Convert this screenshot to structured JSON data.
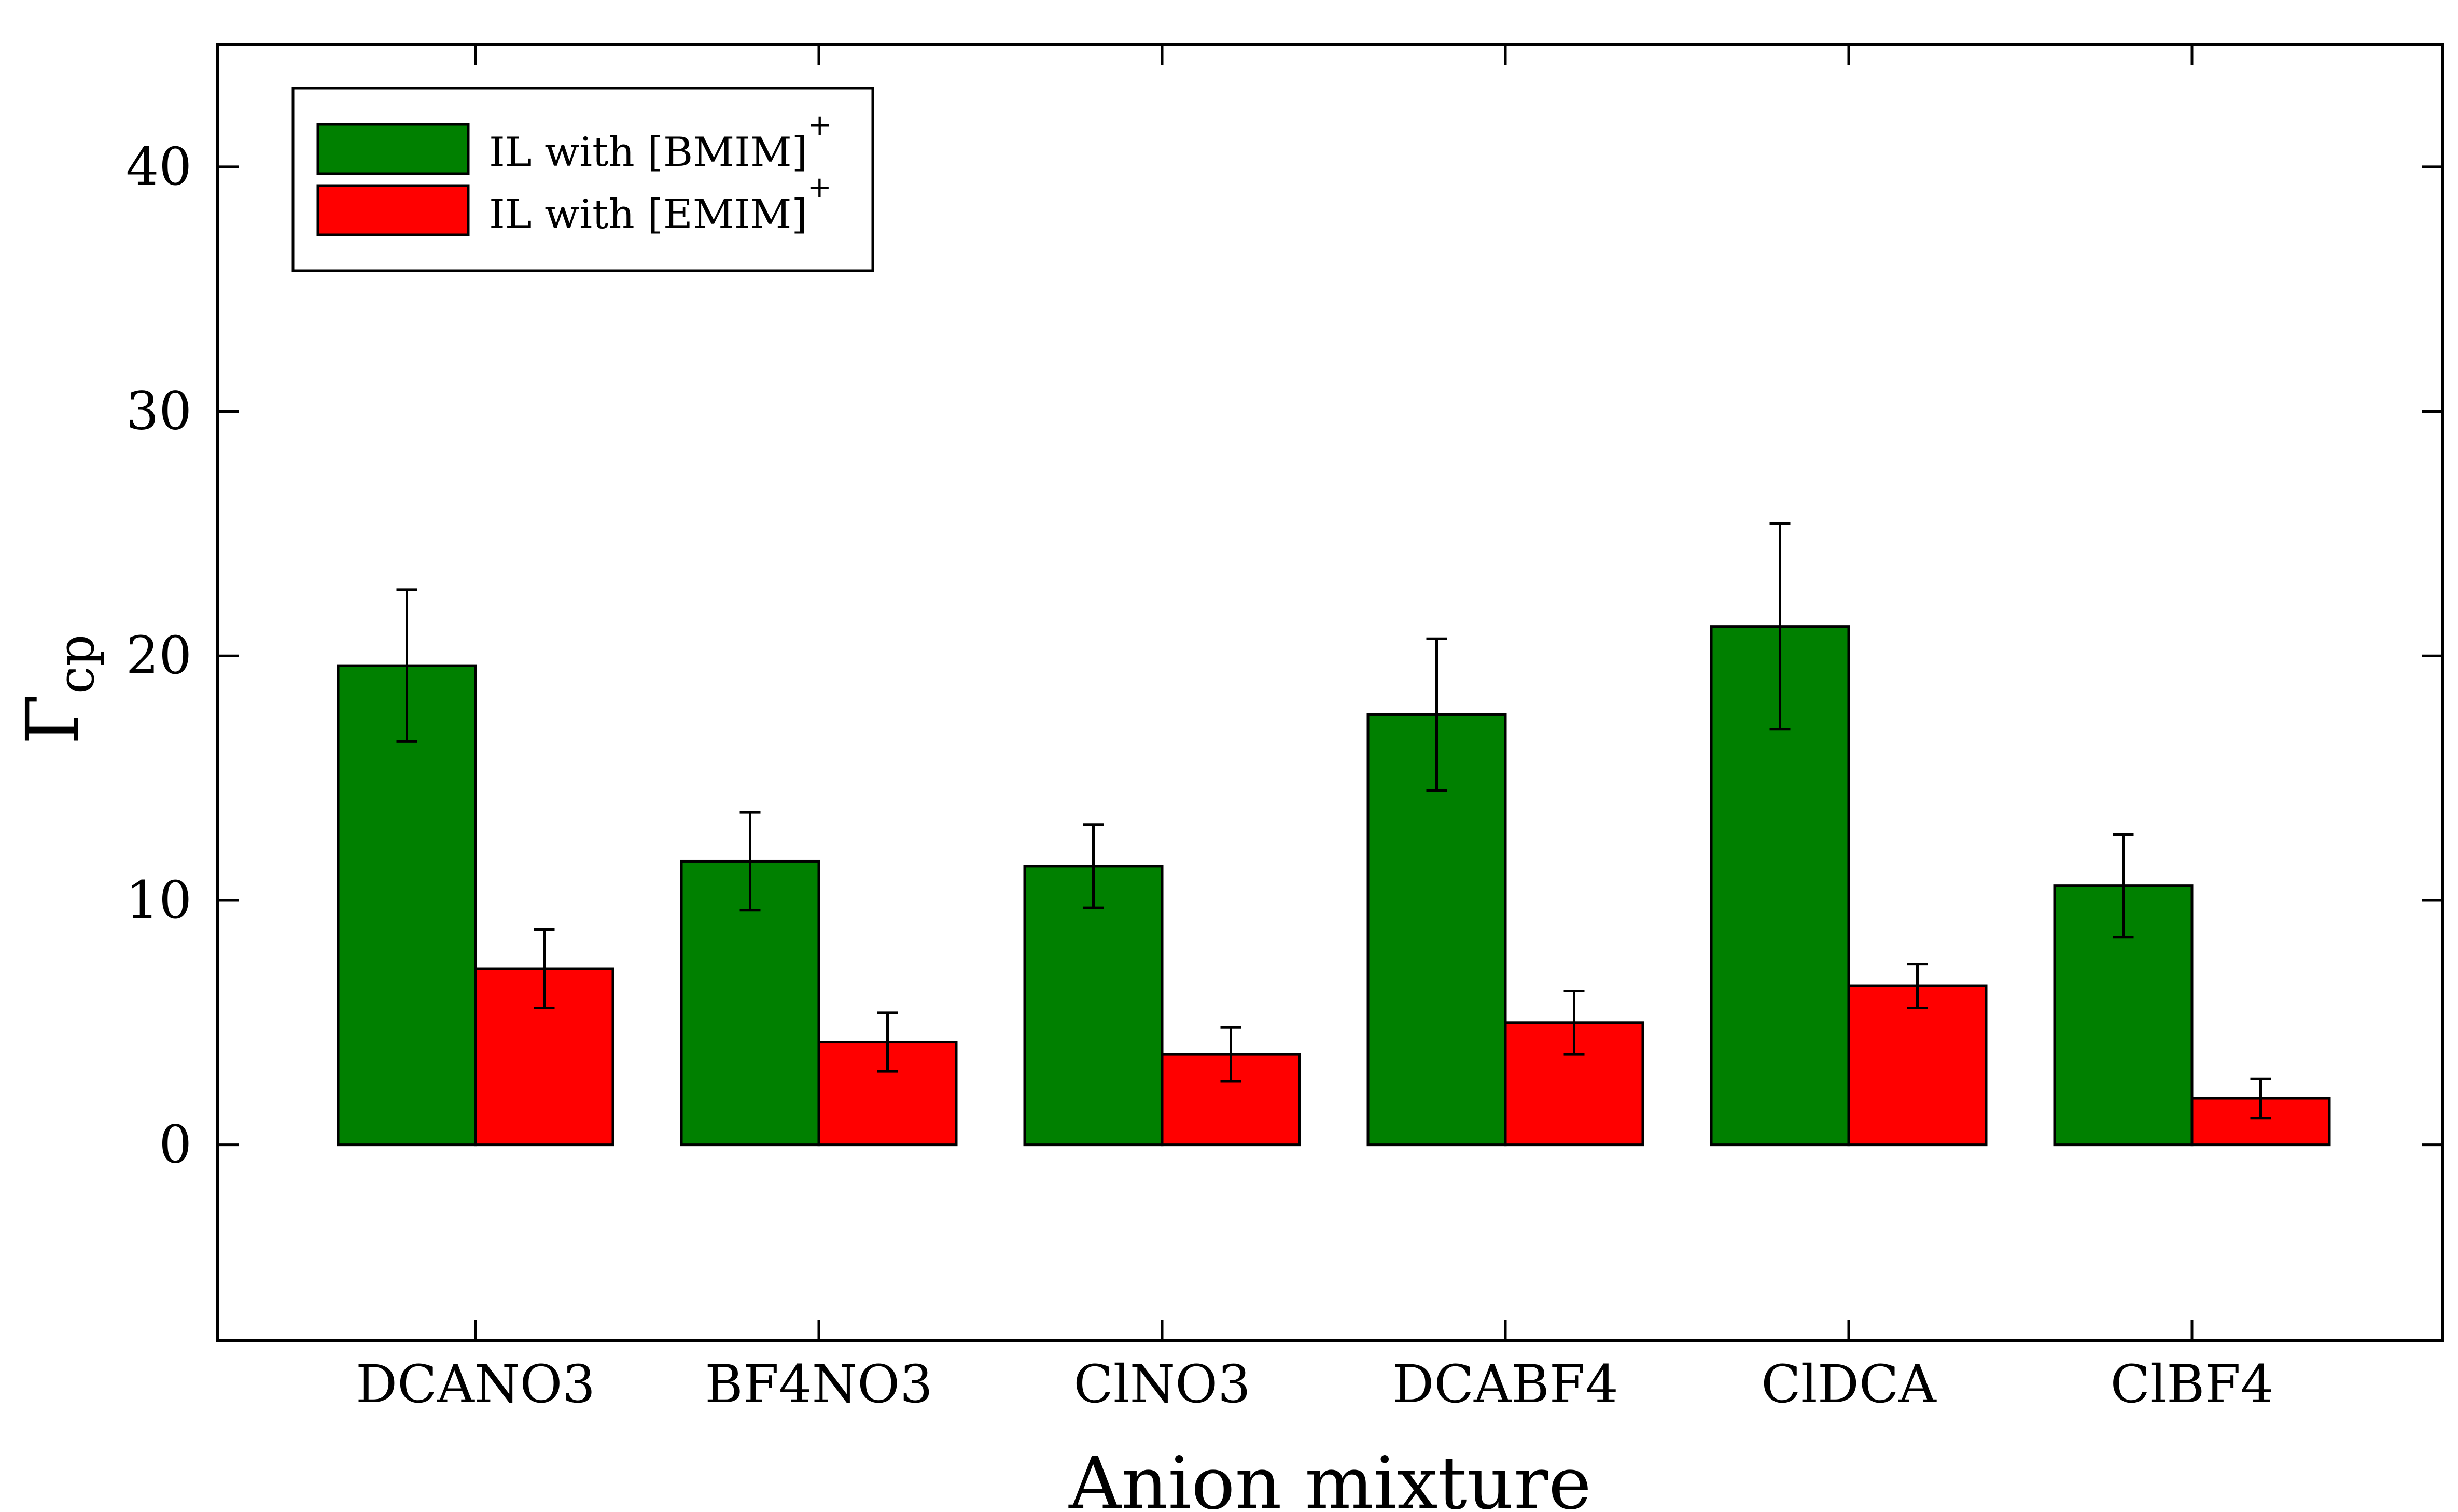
{
  "chart_data": {
    "type": "bar",
    "xlabel": "Anion mixture",
    "ylabel": {
      "symbol": "Γ",
      "subscript": "cp"
    },
    "ylim": [
      -8,
      45
    ],
    "yticks": [
      "0",
      "10",
      "20",
      "30",
      "40"
    ],
    "ytick_values": [
      0,
      10,
      20,
      30,
      40
    ],
    "categories": [
      "DCANO3",
      "BF4NO3",
      "ClNO3",
      "DCABF4",
      "ClDCA",
      "ClBF4"
    ],
    "series": [
      {
        "name": "IL with [BMIM]",
        "name_sup": "+",
        "color": "#008000",
        "values": [
          19.6,
          11.6,
          11.4,
          17.6,
          21.2,
          10.6
        ],
        "errors": [
          3.1,
          2.0,
          1.7,
          3.1,
          4.2,
          2.1
        ]
      },
      {
        "name": "IL with [EMIM]",
        "name_sup": "+",
        "color": "#ff0000",
        "values": [
          7.2,
          4.2,
          3.7,
          5.0,
          6.5,
          1.9
        ],
        "errors": [
          1.6,
          1.2,
          1.1,
          1.3,
          0.9,
          0.8
        ]
      }
    ],
    "legend_position": "top-left",
    "grid": false
  }
}
